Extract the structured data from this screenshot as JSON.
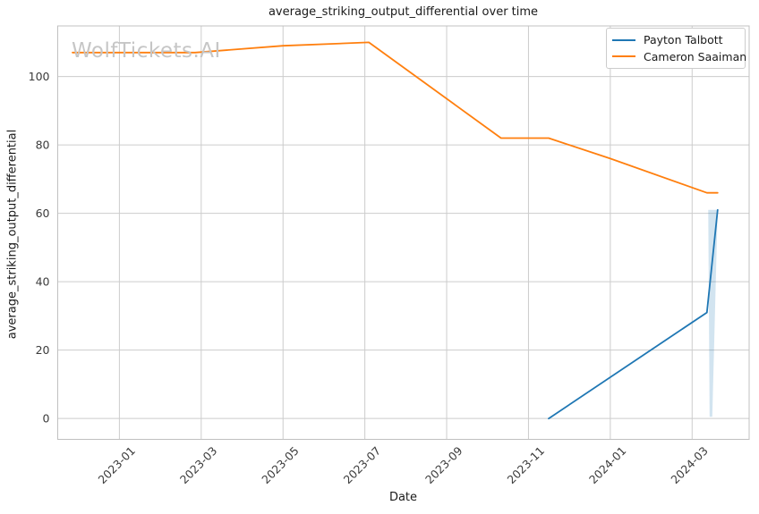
{
  "watermark": "WolfTickets.AI",
  "chart_data": {
    "type": "line",
    "title": "average_striking_output_differential over time",
    "xlabel": "Date",
    "ylabel": "average_striking_output_differential",
    "grid": true,
    "legend_position": "upper right",
    "xlim": [
      "2022-11-16",
      "2024-04-13"
    ],
    "ylim": [
      -6.1,
      114.8
    ],
    "x_ticks": [
      {
        "date": "2023-01-01",
        "label": "2023-01"
      },
      {
        "date": "2023-03-01",
        "label": "2023-03"
      },
      {
        "date": "2023-05-01",
        "label": "2023-05"
      },
      {
        "date": "2023-07-01",
        "label": "2023-07"
      },
      {
        "date": "2023-09-01",
        "label": "2023-09"
      },
      {
        "date": "2023-11-01",
        "label": "2023-11"
      },
      {
        "date": "2024-01-01",
        "label": "2024-01"
      },
      {
        "date": "2024-03-01",
        "label": "2024-03"
      }
    ],
    "y_ticks": [
      0,
      20,
      40,
      60,
      80,
      100
    ],
    "series": [
      {
        "name": "Payton Talbott",
        "color": "#1f77b4",
        "points": [
          [
            "2023-11-16",
            0
          ],
          [
            "2024-03-12",
            31
          ],
          [
            "2024-03-20",
            61
          ]
        ],
        "band": {
          "color": "#1f77b4",
          "opacity": 0.2,
          "polygon": [
            [
              "2024-03-13",
              61
            ],
            [
              "2024-03-20",
              61
            ],
            [
              "2024-03-16",
              0.5
            ],
            [
              "2024-03-14",
              0.5
            ]
          ]
        }
      },
      {
        "name": "Cameron Saaiman",
        "color": "#ff7f0e",
        "points": [
          [
            "2022-11-27",
            107
          ],
          [
            "2023-02-27",
            107
          ],
          [
            "2023-05-01",
            109
          ],
          [
            "2023-07-04",
            110
          ],
          [
            "2023-10-11",
            82
          ],
          [
            "2023-11-16",
            82
          ],
          [
            "2024-01-01",
            76
          ],
          [
            "2024-03-12",
            66
          ],
          [
            "2024-03-20",
            66
          ]
        ]
      }
    ]
  }
}
